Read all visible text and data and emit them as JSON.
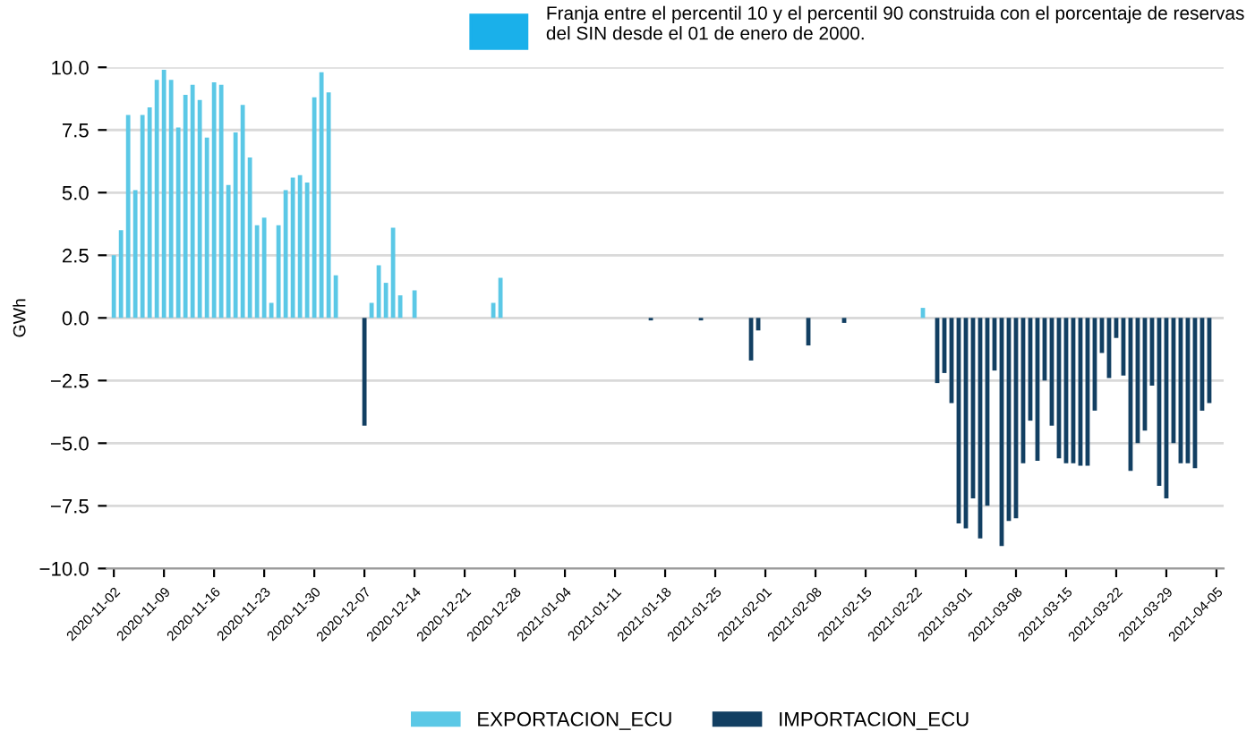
{
  "chart_data": {
    "type": "bar",
    "stacked": true,
    "ylabel": "GWh",
    "annotations": [
      "Franja entre el percentil 10 y el percentil 90 construida con el porcentaje de reservas del SIN desde el 01 de enero de 2000."
    ],
    "series": [
      {
        "name": "EXPORTACION_ECU",
        "color": "#5bc8e6",
        "x": [
          "2020-11-02",
          "2020-11-03",
          "2020-11-04",
          "2020-11-05",
          "2020-11-06",
          "2020-11-07",
          "2020-11-08",
          "2020-11-09",
          "2020-11-10",
          "2020-11-11",
          "2020-11-12",
          "2020-11-13",
          "2020-11-14",
          "2020-11-15",
          "2020-11-16",
          "2020-11-17",
          "2020-11-18",
          "2020-11-19",
          "2020-11-20",
          "2020-11-21",
          "2020-11-22",
          "2020-11-23",
          "2020-11-24",
          "2020-11-25",
          "2020-11-26",
          "2020-11-27",
          "2020-11-28",
          "2020-11-29",
          "2020-11-30",
          "2020-12-01",
          "2020-12-02",
          "2020-12-03",
          "2020-12-08",
          "2020-12-09",
          "2020-12-10",
          "2020-12-11",
          "2020-12-12",
          "2020-12-14",
          "2020-12-25",
          "2020-12-26",
          "2021-02-23"
        ],
        "values": [
          2.5,
          3.5,
          8.1,
          5.1,
          8.1,
          8.4,
          9.5,
          9.9,
          9.5,
          7.6,
          8.9,
          9.3,
          8.7,
          7.2,
          9.4,
          9.3,
          5.3,
          7.4,
          8.5,
          6.4,
          3.7,
          4.0,
          0.6,
          3.7,
          5.1,
          5.6,
          5.7,
          5.4,
          8.8,
          9.8,
          9.0,
          1.7,
          0.6,
          2.1,
          1.4,
          3.6,
          0.9,
          1.1,
          0.6,
          1.6,
          0.4
        ]
      },
      {
        "name": "IMPORTACION_ECU",
        "color": "#123f62",
        "x": [
          "2020-12-07",
          "2021-01-16",
          "2021-01-23",
          "2021-01-30",
          "2021-01-31",
          "2021-02-07",
          "2021-02-12",
          "2021-02-25",
          "2021-02-26",
          "2021-02-27",
          "2021-02-28",
          "2021-03-01",
          "2021-03-02",
          "2021-03-03",
          "2021-03-04",
          "2021-03-05",
          "2021-03-06",
          "2021-03-07",
          "2021-03-08",
          "2021-03-09",
          "2021-03-10",
          "2021-03-11",
          "2021-03-12",
          "2021-03-13",
          "2021-03-14",
          "2021-03-15",
          "2021-03-16",
          "2021-03-17",
          "2021-03-18",
          "2021-03-19",
          "2021-03-20",
          "2021-03-21",
          "2021-03-22",
          "2021-03-23",
          "2021-03-24",
          "2021-03-25",
          "2021-03-26",
          "2021-03-27",
          "2021-03-28",
          "2021-03-29",
          "2021-03-30",
          "2021-03-31",
          "2021-04-01",
          "2021-04-02",
          "2021-04-03",
          "2021-04-04"
        ],
        "values": [
          -4.3,
          -0.1,
          -0.1,
          -1.7,
          -0.5,
          -1.1,
          -0.2,
          -2.6,
          -2.2,
          -3.4,
          -8.2,
          -8.4,
          -7.2,
          -8.8,
          -7.5,
          -2.1,
          -9.1,
          -8.1,
          -8.0,
          -5.8,
          -4.1,
          -5.7,
          -2.5,
          -4.3,
          -5.6,
          -5.8,
          -5.8,
          -5.9,
          -5.9,
          -3.7,
          -1.4,
          -2.4,
          -0.8,
          -2.3,
          -6.1,
          -5.0,
          -4.5,
          -2.7,
          -6.7,
          -7.2,
          -5.0,
          -5.8,
          -5.8,
          -6.0,
          -3.7,
          -3.4
        ]
      }
    ],
    "xlim": [
      "2020-11-01",
      "2021-04-06"
    ],
    "xticks": [
      "2020-11-02",
      "2020-11-09",
      "2020-11-16",
      "2020-11-23",
      "2020-11-30",
      "2020-12-07",
      "2020-12-14",
      "2020-12-21",
      "2020-12-28",
      "2021-01-04",
      "2021-01-11",
      "2021-01-18",
      "2021-01-25",
      "2021-02-01",
      "2021-02-08",
      "2021-02-15",
      "2021-02-22",
      "2021-03-01",
      "2021-03-08",
      "2021-03-15",
      "2021-03-22",
      "2021-03-29",
      "2021-04-05"
    ],
    "ylim": [
      -10,
      10
    ],
    "yticks": [
      {
        "value": -10,
        "label": "−10.0"
      },
      {
        "value": -7.5,
        "label": "−7.5"
      },
      {
        "value": -5,
        "label": "−5.0"
      },
      {
        "value": -2.5,
        "label": "−2.5"
      },
      {
        "value": 0,
        "label": "0.0"
      },
      {
        "value": 2.5,
        "label": "2.5"
      },
      {
        "value": 5,
        "label": "5.0"
      },
      {
        "value": 7.5,
        "label": "7.5"
      },
      {
        "value": 10,
        "label": "10.0"
      }
    ],
    "grid": "y",
    "legend": "bottom"
  }
}
